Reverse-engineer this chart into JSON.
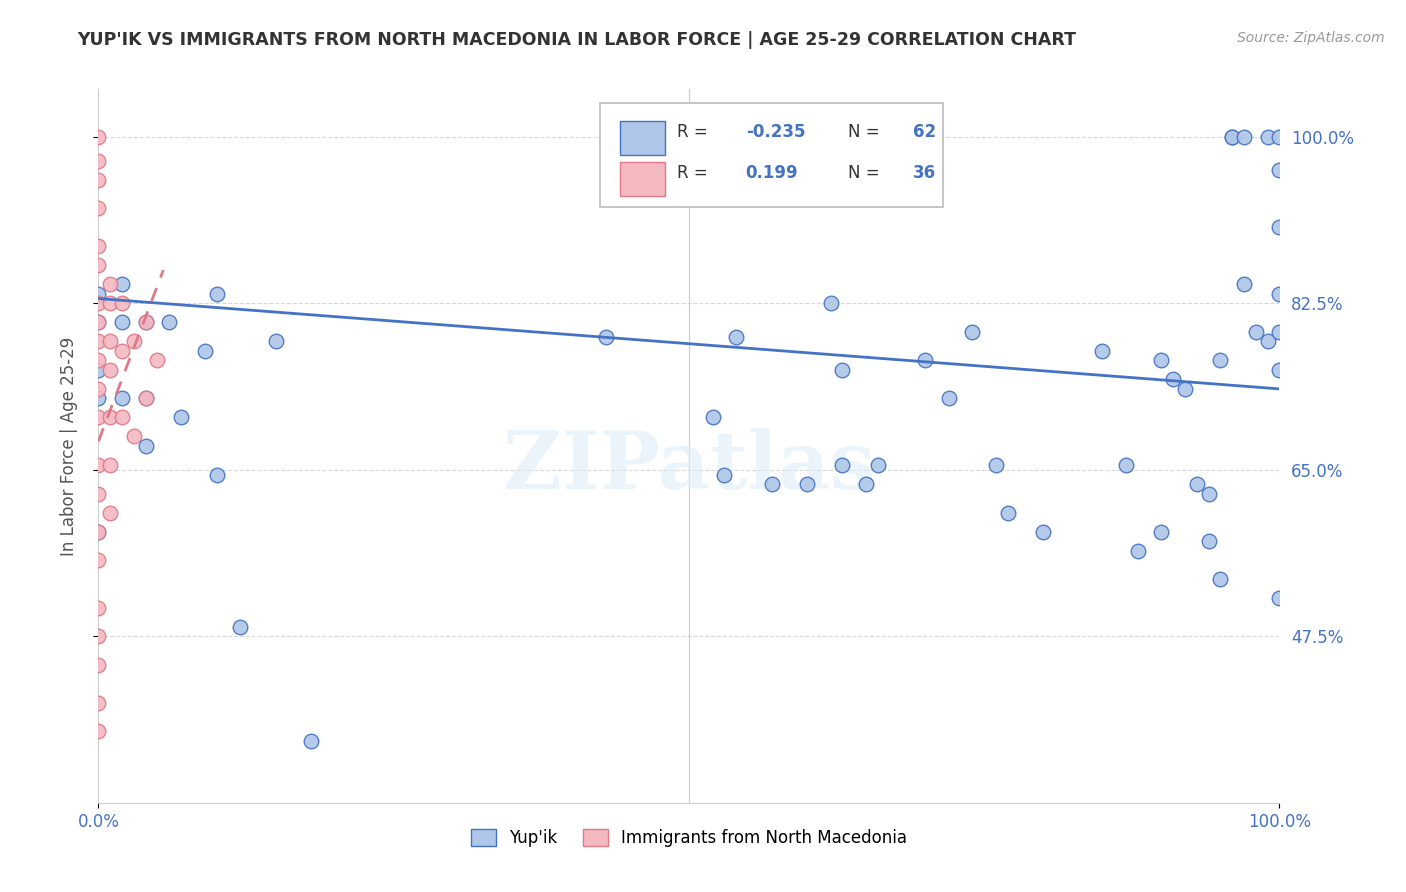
{
  "title": "YUP'IK VS IMMIGRANTS FROM NORTH MACEDONIA IN LABOR FORCE | AGE 25-29 CORRELATION CHART",
  "source": "Source: ZipAtlas.com",
  "ylabel": "In Labor Force | Age 25-29",
  "xlim": [
    0.0,
    1.0
  ],
  "ylim": [
    0.3,
    1.05
  ],
  "yticks": [
    0.475,
    0.65,
    0.825,
    1.0
  ],
  "ytick_labels": [
    "47.5%",
    "65.0%",
    "82.5%",
    "100.0%"
  ],
  "xtick_labels": [
    "0.0%",
    "100.0%"
  ],
  "xticks": [
    0.0,
    1.0
  ],
  "legend_R1": "-0.235",
  "legend_N1": "62",
  "legend_R2": "0.199",
  "legend_N2": "36",
  "color_blue": "#aec6e8",
  "color_pink": "#f4b8c1",
  "line_blue": "#4472c4",
  "line_pink": "#e07888",
  "watermark": "ZIPatlas",
  "blue_scatter_x": [
    0.0,
    0.0,
    0.0,
    0.0,
    0.0,
    0.02,
    0.02,
    0.02,
    0.04,
    0.04,
    0.04,
    0.06,
    0.07,
    0.09,
    0.1,
    0.1,
    0.12,
    0.15,
    0.18,
    0.43,
    0.52,
    0.53,
    0.54,
    0.57,
    0.6,
    0.62,
    0.63,
    0.63,
    0.65,
    0.66,
    0.7,
    0.72,
    0.74,
    0.76,
    0.77,
    0.8,
    0.85,
    0.87,
    0.88,
    0.9,
    0.9,
    0.91,
    0.92,
    0.93,
    0.94,
    0.94,
    0.95,
    0.95,
    0.96,
    0.96,
    0.97,
    0.97,
    0.98,
    0.99,
    0.99,
    1.0,
    1.0,
    1.0,
    1.0,
    1.0,
    1.0,
    1.0
  ],
  "blue_scatter_y": [
    0.835,
    0.805,
    0.755,
    0.725,
    0.585,
    0.845,
    0.805,
    0.725,
    0.805,
    0.725,
    0.675,
    0.805,
    0.705,
    0.775,
    0.835,
    0.645,
    0.485,
    0.785,
    0.365,
    0.79,
    0.705,
    0.645,
    0.79,
    0.635,
    0.635,
    0.825,
    0.755,
    0.655,
    0.635,
    0.655,
    0.765,
    0.725,
    0.795,
    0.655,
    0.605,
    0.585,
    0.775,
    0.655,
    0.565,
    0.585,
    0.765,
    0.745,
    0.735,
    0.635,
    0.625,
    0.575,
    0.535,
    0.765,
    1.0,
    1.0,
    1.0,
    0.845,
    0.795,
    1.0,
    0.785,
    1.0,
    0.965,
    0.905,
    0.835,
    0.795,
    0.755,
    0.515
  ],
  "pink_scatter_x": [
    0.0,
    0.0,
    0.0,
    0.0,
    0.0,
    0.0,
    0.0,
    0.0,
    0.0,
    0.0,
    0.0,
    0.0,
    0.0,
    0.0,
    0.0,
    0.0,
    0.0,
    0.0,
    0.0,
    0.0,
    0.0,
    0.01,
    0.01,
    0.01,
    0.01,
    0.01,
    0.01,
    0.01,
    0.02,
    0.02,
    0.02,
    0.03,
    0.03,
    0.04,
    0.04,
    0.05
  ],
  "pink_scatter_y": [
    1.0,
    0.975,
    0.955,
    0.925,
    0.885,
    0.865,
    0.825,
    0.805,
    0.785,
    0.765,
    0.735,
    0.705,
    0.655,
    0.625,
    0.585,
    0.555,
    0.505,
    0.475,
    0.445,
    0.405,
    0.375,
    0.845,
    0.825,
    0.785,
    0.755,
    0.705,
    0.655,
    0.605,
    0.825,
    0.775,
    0.705,
    0.785,
    0.685,
    0.805,
    0.725,
    0.765
  ],
  "blue_trend_x_start": 0.0,
  "blue_trend_x_end": 1.0,
  "blue_trend_y_start": 0.83,
  "blue_trend_y_end": 0.735,
  "pink_trend_x_start": 0.0,
  "pink_trend_x_end": 0.055,
  "pink_trend_y_start": 0.68,
  "pink_trend_y_end": 0.86
}
